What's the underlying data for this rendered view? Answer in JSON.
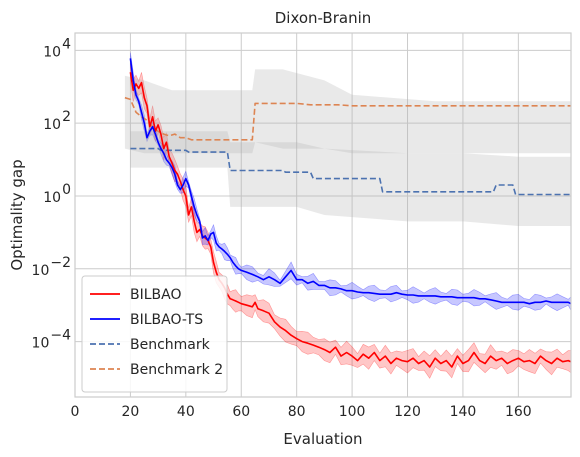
{
  "chart_data": {
    "type": "line",
    "title": "Dixon-Branin",
    "xlabel": "Evaluation",
    "ylabel": "Optimality gap",
    "xlim": [
      0,
      179
    ],
    "ylim": [
      3e-06,
      30000
    ],
    "yscale": "log",
    "grid": true,
    "legend_position": "lower-left",
    "x_ticks": [
      0,
      20,
      40,
      60,
      80,
      100,
      120,
      140,
      160
    ],
    "y_ticks": [
      {
        "value": 0.0001,
        "base": "10",
        "exp": "−4"
      },
      {
        "value": 0.01,
        "base": "10",
        "exp": "−2"
      },
      {
        "value": 1,
        "base": "10",
        "exp": "0"
      },
      {
        "value": 100,
        "base": "10",
        "exp": "2"
      },
      {
        "value": 10000,
        "base": "10",
        "exp": "4"
      }
    ],
    "series": [
      {
        "name": "BILBAO",
        "color": "#ff0000",
        "band_color": "#ff0000",
        "style": "solid",
        "points": [
          [
            20,
            2500
          ],
          [
            21,
            800
          ],
          [
            22,
            1200
          ],
          [
            23,
            900
          ],
          [
            24,
            1300
          ],
          [
            25,
            500
          ],
          [
            26,
            300
          ],
          [
            27,
            80
          ],
          [
            28,
            150
          ],
          [
            29,
            60
          ],
          [
            30,
            90
          ],
          [
            31,
            50
          ],
          [
            32,
            20
          ],
          [
            33,
            30
          ],
          [
            34,
            12
          ],
          [
            35,
            8
          ],
          [
            36,
            5
          ],
          [
            37,
            4
          ],
          [
            38,
            2.5
          ],
          [
            39,
            1.5
          ],
          [
            40,
            1
          ],
          [
            41,
            0.3
          ],
          [
            42,
            0.5
          ],
          [
            43,
            0.2
          ],
          [
            44,
            0.1
          ],
          [
            45,
            0.12
          ],
          [
            46,
            0.08
          ],
          [
            47,
            0.07
          ],
          [
            48,
            0.06
          ],
          [
            49,
            0.04
          ],
          [
            50,
            0.015
          ],
          [
            51,
            0.008
          ],
          [
            52,
            0.005
          ],
          [
            53,
            0.004
          ],
          [
            54,
            0.003
          ],
          [
            55,
            0.002
          ],
          [
            56,
            0.0015
          ],
          [
            57,
            0.0014
          ],
          [
            58,
            0.0013
          ],
          [
            59,
            0.0012
          ],
          [
            60,
            0.0011
          ],
          [
            62,
            0.001
          ],
          [
            64,
            0.0009
          ],
          [
            65,
            0.0012
          ],
          [
            66,
            0.0008
          ],
          [
            68,
            0.0007
          ],
          [
            70,
            0.0006
          ],
          [
            72,
            0.00035
          ],
          [
            74,
            0.00025
          ],
          [
            76,
            0.0002
          ],
          [
            78,
            0.00015
          ],
          [
            80,
            0.00012
          ],
          [
            82,
            0.0001
          ],
          [
            84,
            9e-05
          ],
          [
            86,
            8e-05
          ],
          [
            88,
            7e-05
          ],
          [
            90,
            6e-05
          ],
          [
            92,
            5e-05
          ],
          [
            94,
            7e-05
          ],
          [
            96,
            4e-05
          ],
          [
            98,
            5e-05
          ],
          [
            100,
            4e-05
          ],
          [
            102,
            3e-05
          ],
          [
            104,
            4.5e-05
          ],
          [
            106,
            3.5e-05
          ],
          [
            108,
            5e-05
          ],
          [
            110,
            3e-05
          ],
          [
            112,
            4e-05
          ],
          [
            114,
            2.5e-05
          ],
          [
            116,
            3.5e-05
          ],
          [
            118,
            3e-05
          ],
          [
            120,
            2.8e-05
          ],
          [
            122,
            3.5e-05
          ],
          [
            124,
            2.5e-05
          ],
          [
            126,
            3e-05
          ],
          [
            128,
            2e-05
          ],
          [
            130,
            3.5e-05
          ],
          [
            132,
            2.5e-05
          ],
          [
            134,
            3e-05
          ],
          [
            136,
            2e-05
          ],
          [
            138,
            4e-05
          ],
          [
            140,
            2.5e-05
          ],
          [
            142,
            3e-05
          ],
          [
            144,
            5e-05
          ],
          [
            146,
            3e-05
          ],
          [
            148,
            2.5e-05
          ],
          [
            150,
            4e-05
          ],
          [
            152,
            3e-05
          ],
          [
            154,
            3.5e-05
          ],
          [
            156,
            2.5e-05
          ],
          [
            158,
            3e-05
          ],
          [
            160,
            3.5e-05
          ],
          [
            162,
            2.8e-05
          ],
          [
            164,
            3e-05
          ],
          [
            166,
            2.5e-05
          ],
          [
            168,
            4e-05
          ],
          [
            170,
            3e-05
          ],
          [
            172,
            2.5e-05
          ],
          [
            174,
            3.5e-05
          ],
          [
            176,
            2.8e-05
          ],
          [
            178,
            3e-05
          ],
          [
            179,
            2.8e-05
          ]
        ]
      },
      {
        "name": "BILBAO-TS",
        "color": "#0000ff",
        "band_color": "#0000ff",
        "style": "solid",
        "points": [
          [
            20,
            6000
          ],
          [
            21,
            1500
          ],
          [
            22,
            600
          ],
          [
            23,
            400
          ],
          [
            24,
            200
          ],
          [
            25,
            100
          ],
          [
            26,
            40
          ],
          [
            27,
            60
          ],
          [
            28,
            80
          ],
          [
            29,
            50
          ],
          [
            30,
            30
          ],
          [
            31,
            20
          ],
          [
            32,
            15
          ],
          [
            33,
            10
          ],
          [
            34,
            8
          ],
          [
            35,
            6
          ],
          [
            36,
            4
          ],
          [
            37,
            2
          ],
          [
            38,
            1.5
          ],
          [
            39,
            2
          ],
          [
            40,
            3
          ],
          [
            41,
            2
          ],
          [
            42,
            1
          ],
          [
            43,
            0.5
          ],
          [
            44,
            0.3
          ],
          [
            45,
            0.2
          ],
          [
            46,
            0.07
          ],
          [
            47,
            0.08
          ],
          [
            48,
            0.06
          ],
          [
            49,
            0.09
          ],
          [
            50,
            0.1
          ],
          [
            51,
            0.05
          ],
          [
            52,
            0.04
          ],
          [
            53,
            0.035
          ],
          [
            54,
            0.03
          ],
          [
            55,
            0.025
          ],
          [
            56,
            0.02
          ],
          [
            57,
            0.015
          ],
          [
            58,
            0.012
          ],
          [
            59,
            0.01
          ],
          [
            60,
            0.009
          ],
          [
            62,
            0.008
          ],
          [
            64,
            0.007
          ],
          [
            66,
            0.006
          ],
          [
            68,
            0.005
          ],
          [
            70,
            0.006
          ],
          [
            72,
            0.005
          ],
          [
            74,
            0.004
          ],
          [
            76,
            0.006
          ],
          [
            78,
            0.009
          ],
          [
            80,
            0.005
          ],
          [
            82,
            0.005
          ],
          [
            84,
            0.004
          ],
          [
            86,
            0.0045
          ],
          [
            88,
            0.0035
          ],
          [
            90,
            0.0035
          ],
          [
            92,
            0.003
          ],
          [
            94,
            0.003
          ],
          [
            96,
            0.0028
          ],
          [
            98,
            0.0025
          ],
          [
            100,
            0.0025
          ],
          [
            102,
            0.0023
          ],
          [
            104,
            0.0022
          ],
          [
            106,
            0.0022
          ],
          [
            108,
            0.0021
          ],
          [
            110,
            0.002
          ],
          [
            112,
            0.002
          ],
          [
            114,
            0.002
          ],
          [
            116,
            0.0022
          ],
          [
            118,
            0.002
          ],
          [
            120,
            0.0019
          ],
          [
            122,
            0.0019
          ],
          [
            124,
            0.0018
          ],
          [
            126,
            0.0018
          ],
          [
            128,
            0.0018
          ],
          [
            130,
            0.0018
          ],
          [
            132,
            0.0017
          ],
          [
            134,
            0.0017
          ],
          [
            136,
            0.0017
          ],
          [
            138,
            0.0016
          ],
          [
            140,
            0.0016
          ],
          [
            142,
            0.0016
          ],
          [
            144,
            0.0016
          ],
          [
            146,
            0.0015
          ],
          [
            148,
            0.0015
          ],
          [
            150,
            0.0014
          ],
          [
            152,
            0.0013
          ],
          [
            154,
            0.0012
          ],
          [
            156,
            0.0012
          ],
          [
            158,
            0.0012
          ],
          [
            160,
            0.0012
          ],
          [
            162,
            0.0012
          ],
          [
            164,
            0.0011
          ],
          [
            166,
            0.0012
          ],
          [
            168,
            0.0012
          ],
          [
            170,
            0.0013
          ],
          [
            172,
            0.0012
          ],
          [
            174,
            0.0012
          ],
          [
            176,
            0.0012
          ],
          [
            178,
            0.0012
          ],
          [
            179,
            0.0011
          ]
        ]
      },
      {
        "name": "Benchmark",
        "color": "#4c72b0",
        "band_color": "#b0b0b0",
        "style": "dashed",
        "points": [
          [
            20,
            20
          ],
          [
            30,
            20
          ],
          [
            31,
            18
          ],
          [
            40,
            18
          ],
          [
            41,
            16
          ],
          [
            55,
            16
          ],
          [
            56,
            5
          ],
          [
            75,
            5
          ],
          [
            76,
            4.5
          ],
          [
            85,
            4.5
          ],
          [
            86,
            3
          ],
          [
            110,
            3
          ],
          [
            111,
            1.3
          ],
          [
            140,
            1.3
          ],
          [
            151,
            1.3
          ],
          [
            152,
            2
          ],
          [
            158,
            2
          ],
          [
            159,
            1.1
          ],
          [
            179,
            1.1
          ]
        ],
        "band": [
          [
            20,
            6,
            60
          ],
          [
            40,
            6,
            60
          ],
          [
            55,
            6,
            60
          ],
          [
            56,
            0.5,
            30
          ],
          [
            80,
            0.5,
            30
          ],
          [
            90,
            0.3,
            20
          ],
          [
            120,
            0.2,
            15
          ],
          [
            140,
            0.2,
            15
          ],
          [
            160,
            0.15,
            12
          ],
          [
            179,
            0.15,
            12
          ]
        ]
      },
      {
        "name": "Benchmark 2",
        "color": "#dd8452",
        "band_color": "#b0b0b0",
        "style": "dashed",
        "points": [
          [
            18,
            500
          ],
          [
            20,
            450
          ],
          [
            21,
            300
          ],
          [
            22,
            200
          ],
          [
            24,
            150
          ],
          [
            26,
            120
          ],
          [
            28,
            80
          ],
          [
            30,
            60
          ],
          [
            32,
            50
          ],
          [
            34,
            45
          ],
          [
            36,
            50
          ],
          [
            38,
            40
          ],
          [
            40,
            40
          ],
          [
            42,
            35
          ],
          [
            64,
            35
          ],
          [
            65,
            350
          ],
          [
            80,
            350
          ],
          [
            85,
            320
          ],
          [
            95,
            320
          ],
          [
            100,
            300
          ],
          [
            179,
            300
          ]
        ],
        "band": [
          [
            18,
            20,
            2000
          ],
          [
            25,
            15,
            1500
          ],
          [
            35,
            15,
            800
          ],
          [
            64,
            15,
            800
          ],
          [
            65,
            30,
            3000
          ],
          [
            75,
            20,
            3000
          ],
          [
            90,
            20,
            1500
          ],
          [
            100,
            15,
            600
          ],
          [
            130,
            15,
            400
          ],
          [
            160,
            15,
            400
          ],
          [
            179,
            15,
            400
          ]
        ]
      }
    ]
  }
}
